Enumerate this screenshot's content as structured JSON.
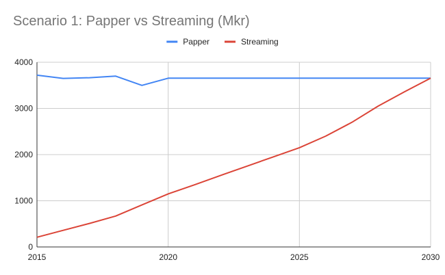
{
  "chart_data": {
    "type": "line",
    "title": "Scenario 1: Papper vs Streaming (Mkr)",
    "xlabel": "",
    "ylabel": "",
    "xlim": [
      2015,
      2030
    ],
    "ylim": [
      0,
      4000
    ],
    "x_ticks": [
      "2015",
      "2020",
      "2025",
      "2030"
    ],
    "y_ticks": [
      "0",
      "1000",
      "2000",
      "3000",
      "4000"
    ],
    "grid": true,
    "legend_position": "top",
    "x": [
      2015,
      2016,
      2017,
      2018,
      2019,
      2020,
      2021,
      2022,
      2023,
      2024,
      2025,
      2026,
      2027,
      2028,
      2029,
      2030
    ],
    "series": [
      {
        "name": "Papper",
        "color": "#4285f4",
        "values": [
          3720,
          3650,
          3665,
          3700,
          3500,
          3655,
          3655,
          3655,
          3655,
          3655,
          3655,
          3655,
          3655,
          3655,
          3655,
          3655
        ]
      },
      {
        "name": "Streaming",
        "color": "#db4437",
        "values": [
          210,
          360,
          510,
          670,
          910,
          1150,
          1345,
          1550,
          1750,
          1950,
          2150,
          2400,
          2700,
          3050,
          3360,
          3655
        ]
      }
    ]
  }
}
